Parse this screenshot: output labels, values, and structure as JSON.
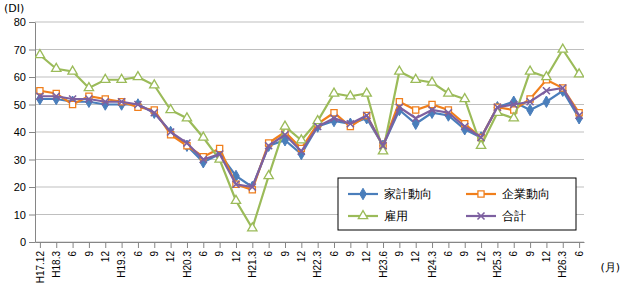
{
  "chart_data": {
    "type": "line",
    "y_label": "(DI)",
    "x_label": "(月)",
    "categories": [
      "H17.12",
      "H18.3",
      "6",
      "9",
      "12",
      "H19.3",
      "6",
      "9",
      "12",
      "H20.3",
      "6",
      "9",
      "12",
      "H21.3",
      "6",
      "9",
      "12",
      "H22.3",
      "6",
      "9",
      "12",
      "H23.6",
      "9",
      "12",
      "H24.3",
      "6",
      "9",
      "12",
      "H25.3",
      "6",
      "9",
      "12",
      "H26.3",
      "6"
    ],
    "series": [
      {
        "name": "家計動向",
        "color": "#4a7ebb",
        "marker": "diamond",
        "line_style": "solid",
        "values": [
          52,
          52,
          51,
          51,
          50,
          50,
          50,
          47,
          40,
          35,
          29,
          32,
          24,
          20,
          35,
          37,
          32,
          42,
          44,
          43,
          45,
          35,
          48,
          43,
          47,
          46,
          41,
          38,
          49,
          51,
          48,
          51,
          55,
          45
        ]
      },
      {
        "name": "企業動向",
        "color": "#f07f1c",
        "marker": "square-open",
        "line_style": "solid",
        "values": [
          55,
          54,
          50,
          53,
          52,
          51,
          49,
          48,
          39,
          35,
          31,
          34,
          21,
          19,
          36,
          40,
          34,
          43,
          47,
          42,
          46,
          35,
          51,
          48,
          50,
          48,
          43,
          38,
          49,
          48,
          52,
          59,
          56,
          47
        ]
      },
      {
        "name": "雇用",
        "color": "#9bbb59",
        "marker": "triangle-open",
        "line_style": "solid",
        "values": [
          68,
          63,
          62,
          56,
          59,
          59,
          60,
          57,
          48,
          45,
          38,
          30,
          15,
          5,
          24,
          42,
          37,
          44,
          54,
          53,
          54,
          33,
          62,
          59,
          58,
          54,
          52,
          35,
          47,
          45,
          62,
          60,
          70,
          61
        ]
      },
      {
        "name": "合計",
        "color": "#7d60a0",
        "marker": "x",
        "line_style": "solid",
        "values": [
          53,
          53,
          52,
          52,
          51,
          51,
          50,
          47,
          40,
          36,
          30,
          32,
          21,
          20,
          35,
          39,
          33,
          42,
          45,
          43,
          46,
          35,
          49,
          45,
          48,
          47,
          42,
          38,
          49,
          50,
          51,
          55,
          56,
          46
        ]
      }
    ],
    "ylim": [
      0,
      80
    ],
    "yticks": [
      0,
      10,
      20,
      30,
      40,
      50,
      60,
      70,
      80
    ],
    "grid": true,
    "legend": "lower right"
  }
}
